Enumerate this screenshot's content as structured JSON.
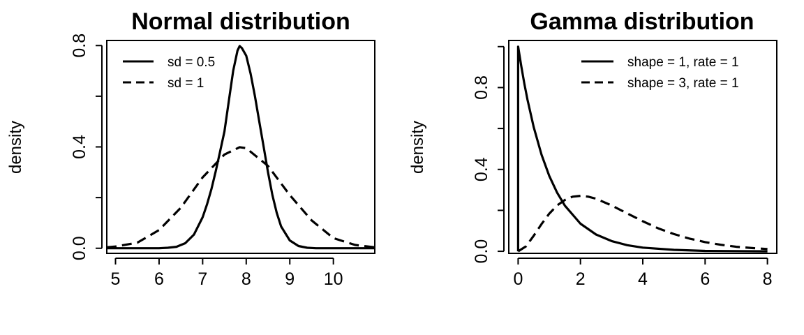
{
  "chart_data": [
    {
      "type": "line",
      "title": "Normal distribution",
      "xlabel": "",
      "ylabel": "density",
      "xlim": [
        4.8,
        10.95
      ],
      "ylim": [
        -0.02,
        0.82
      ],
      "xticks": [
        5,
        6,
        7,
        8,
        9,
        10
      ],
      "xtick_labels": [
        "5",
        "6",
        "7",
        "8",
        "9",
        "10"
      ],
      "yticks": [
        0,
        0.2,
        0.4,
        0.6,
        0.8
      ],
      "ytick_labels": [
        "0.0",
        "",
        "0.4",
        "",
        "0.8"
      ],
      "grid": false,
      "legend_position": "top-left",
      "series": [
        {
          "name": "sd = 0.5",
          "dash": "solid",
          "x": [
            4.8,
            5.0,
            5.2,
            5.4,
            5.6,
            5.8,
            6.0,
            6.2,
            6.4,
            6.6,
            6.8,
            7.0,
            7.1,
            7.2,
            7.3,
            7.4,
            7.5,
            7.6,
            7.7,
            7.8,
            7.85,
            7.9,
            8.0,
            8.1,
            8.2,
            8.3,
            8.4,
            8.5,
            8.6,
            8.7,
            8.8,
            9.0,
            9.2,
            9.4,
            9.6,
            9.8,
            10.0,
            10.2,
            10.4,
            10.6,
            10.8,
            10.95
          ],
          "y": [
            0.0,
            0.0,
            0.0,
            0.0,
            0.0,
            0.0,
            0.0,
            0.002,
            0.006,
            0.02,
            0.054,
            0.123,
            0.173,
            0.233,
            0.304,
            0.381,
            0.461,
            0.58,
            0.7,
            0.78,
            0.798,
            0.79,
            0.76,
            0.69,
            0.6,
            0.5,
            0.4,
            0.3,
            0.21,
            0.14,
            0.086,
            0.031,
            0.009,
            0.002,
            0.0,
            0.0,
            0.0,
            0.0,
            0.0,
            0.0,
            0.0,
            0.0
          ]
        },
        {
          "name": "sd = 1",
          "dash": "dashed",
          "x": [
            4.8,
            5.0,
            5.5,
            6.0,
            6.5,
            7.0,
            7.5,
            7.85,
            8.0,
            8.5,
            9.0,
            9.5,
            10.0,
            10.5,
            10.95
          ],
          "y": [
            0.004,
            0.007,
            0.022,
            0.072,
            0.16,
            0.28,
            0.37,
            0.399,
            0.395,
            0.325,
            0.21,
            0.11,
            0.04,
            0.013,
            0.004
          ]
        }
      ]
    },
    {
      "type": "line",
      "title": "Gamma distribution",
      "xlabel": "",
      "ylabel": "density",
      "xlim": [
        -0.3,
        8.3
      ],
      "ylim": [
        -0.01,
        1.03
      ],
      "xticks": [
        0,
        2,
        4,
        6,
        8
      ],
      "xtick_labels": [
        "0",
        "2",
        "4",
        "6",
        "8"
      ],
      "yticks": [
        0,
        0.2,
        0.4,
        0.6,
        0.8,
        1.0
      ],
      "ytick_labels": [
        "0.0",
        "",
        "0.4",
        "",
        "0.8",
        ""
      ],
      "grid": false,
      "legend_position": "top-right",
      "series": [
        {
          "name": "shape = 1, rate = 1",
          "dash": "solid",
          "x": [
            0.0,
            0.0,
            0.1,
            0.2,
            0.3,
            0.5,
            0.75,
            1.0,
            1.25,
            1.5,
            2.0,
            2.5,
            3.0,
            3.5,
            4.0,
            5.0,
            6.0,
            7.0,
            8.0
          ],
          "y": [
            0.0,
            1.0,
            0.905,
            0.819,
            0.741,
            0.607,
            0.472,
            0.368,
            0.287,
            0.223,
            0.135,
            0.082,
            0.05,
            0.03,
            0.018,
            0.007,
            0.002,
            0.001,
            0.0
          ]
        },
        {
          "name": "shape = 3, rate = 1",
          "dash": "dashed",
          "x": [
            0.0,
            0.25,
            0.5,
            0.75,
            1.0,
            1.25,
            1.5,
            1.75,
            2.0,
            2.25,
            2.5,
            3.0,
            3.5,
            4.0,
            4.5,
            5.0,
            5.5,
            6.0,
            6.5,
            7.0,
            7.5,
            8.0
          ],
          "y": [
            0.0,
            0.024,
            0.076,
            0.133,
            0.184,
            0.224,
            0.251,
            0.267,
            0.271,
            0.267,
            0.257,
            0.224,
            0.185,
            0.147,
            0.112,
            0.084,
            0.062,
            0.045,
            0.032,
            0.022,
            0.016,
            0.011
          ]
        }
      ]
    }
  ]
}
